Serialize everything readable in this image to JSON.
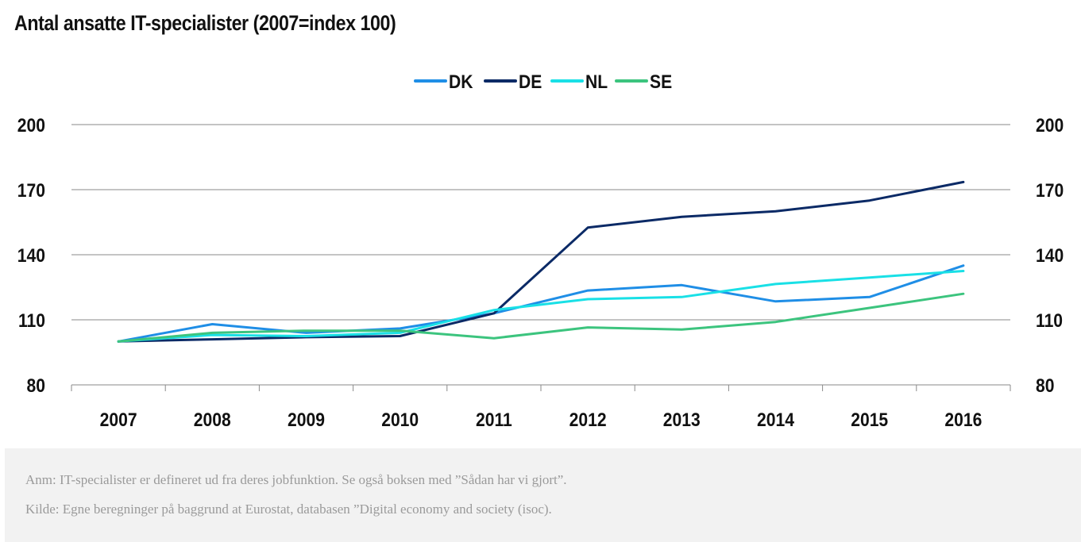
{
  "header": {
    "title": "Antal ansatte IT-specialister (2007=index 100)"
  },
  "chart_data": {
    "type": "line",
    "title": "Antal ansatte IT-specialister (2007=index 100)",
    "x": [
      "2007",
      "2008",
      "2009",
      "2010",
      "2011",
      "2012",
      "2013",
      "2014",
      "2015",
      "2016"
    ],
    "ylim": [
      80,
      200
    ],
    "yticks": [
      80,
      110,
      140,
      170,
      200
    ],
    "ytick_labels": [
      "80",
      "110",
      "140",
      "170",
      "200"
    ],
    "secondary_yticks": [
      80,
      110,
      140,
      170,
      200
    ],
    "secondary_ytick_labels": [
      "80",
      "110",
      "140",
      "170",
      "200"
    ],
    "grid": true,
    "legend_position": "top-center",
    "series": [
      {
        "name": "DK",
        "color": "#1f8ee6",
        "values": [
          100,
          108,
          104,
          106,
          113,
          123.5,
          126,
          118.5,
          120.5,
          135
        ]
      },
      {
        "name": "DE",
        "color": "#0b2a66",
        "values": [
          100,
          101,
          102,
          102.5,
          113,
          152.5,
          157.5,
          160,
          165,
          173.5
        ]
      },
      {
        "name": "NL",
        "color": "#19e0e6",
        "values": [
          100,
          103,
          102.5,
          104,
          114.5,
          119.5,
          120.5,
          126.5,
          129.5,
          132.5
        ]
      },
      {
        "name": "SE",
        "color": "#3cc47e",
        "values": [
          100,
          104,
          105,
          105,
          101.5,
          106.5,
          105.5,
          109,
          115.5,
          122
        ]
      }
    ]
  },
  "notes": {
    "anm": "Anm: IT-specialister er defineret ud fra deres jobfunktion. Se også boksen med ”Sådan har vi gjort”.",
    "kilde": "Kilde: Egne beregninger på baggrund at Eurostat, databasen ”Digital economy and society (isoc)."
  }
}
